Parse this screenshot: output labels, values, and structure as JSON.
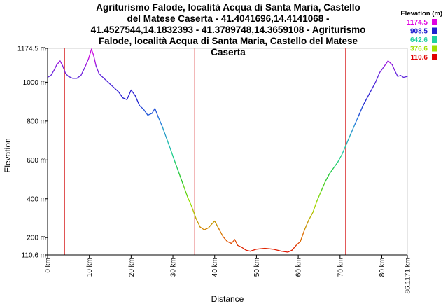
{
  "chart_data": {
    "type": "line",
    "title_lines": [
      "Agriturismo Falode, località Acqua di Santa Maria, Castello",
      "del Matese Caserta - 41.4041696,14.4141068 -",
      "41.4527544,14.1832393 - 41.3789748,14.3659108 - Agriturismo",
      "Falode, località Acqua di Santa Maria, Castello del Matese",
      "Caserta"
    ],
    "xlabel": "Distance",
    "ylabel": "Elevation",
    "xlim": [
      0,
      86.1171
    ],
    "ylim": [
      110.6,
      1174.5
    ],
    "x_ticks": [
      "0 km",
      "10 km",
      "20 km",
      "30 km",
      "40 km",
      "50 km",
      "60 km",
      "70 km",
      "80 km",
      "86.1171 km"
    ],
    "x_tick_values": [
      0,
      10,
      20,
      30,
      40,
      50,
      60,
      70,
      80,
      86.1171
    ],
    "y_ticks": [
      "110.6 m",
      "200 m",
      "400 m",
      "600 m",
      "800 m",
      "1000 m",
      "1174.5 m"
    ],
    "y_tick_values": [
      110.6,
      200,
      400,
      600,
      800,
      1000,
      1174.5
    ],
    "waypoints_km": [
      4.1,
      35.2,
      71.3
    ],
    "legend": {
      "title": "Elevation (m)",
      "entries": [
        {
          "label": "1174.5",
          "color": "#e000e0"
        },
        {
          "label": "908.5",
          "color": "#2020d0"
        },
        {
          "label": "642.6",
          "color": "#20d0a0"
        },
        {
          "label": "376.6",
          "color": "#a0e000"
        },
        {
          "label": "110.6",
          "color": "#e00000"
        }
      ]
    },
    "series": [
      {
        "x": [
          0,
          0.8,
          1.5,
          2.2,
          3.0,
          3.6,
          4.3,
          5.0,
          6.0,
          7.0,
          8.0,
          9.0,
          9.8,
          10.5,
          11.0,
          11.6,
          12.3,
          13.0,
          14.0,
          15.0,
          16.0,
          17.0,
          18.0,
          19.0,
          20.0,
          21.0,
          22.0,
          23.0,
          24.0,
          25.0,
          25.7,
          26.5,
          27.5,
          28.5,
          29.5,
          30.5,
          31.5,
          32.5,
          33.5,
          34.5,
          35.5,
          36.5,
          37.5,
          38.5,
          39.3,
          40.0,
          41.0,
          42.0,
          43.0,
          44.0,
          44.8,
          45.5,
          46.5,
          47.5,
          48.5,
          50.0,
          52.0,
          54.0,
          56.0,
          57.5,
          58.5,
          59.5,
          60.5,
          61.5,
          62.5,
          63.5,
          64.5,
          65.5,
          66.5,
          67.5,
          68.5,
          69.5,
          70.5,
          71.5,
          72.5,
          73.5,
          74.5,
          75.5,
          76.5,
          77.5,
          78.5,
          79.5,
          80.5,
          81.5,
          82.5,
          83.2,
          83.8,
          84.5,
          85.2,
          86.1171
        ],
        "y": [
          1025,
          1035,
          1060,
          1090,
          1110,
          1085,
          1045,
          1030,
          1020,
          1020,
          1035,
          1080,
          1120,
          1170,
          1140,
          1085,
          1045,
          1030,
          1010,
          990,
          970,
          950,
          920,
          910,
          960,
          930,
          880,
          860,
          830,
          840,
          865,
          820,
          770,
          710,
          650,
          590,
          530,
          470,
          410,
          360,
          300,
          255,
          240,
          250,
          270,
          285,
          245,
          205,
          180,
          170,
          190,
          160,
          150,
          135,
          130,
          140,
          145,
          140,
          130,
          125,
          135,
          160,
          180,
          240,
          290,
          330,
          390,
          440,
          490,
          530,
          560,
          590,
          630,
          680,
          730,
          780,
          830,
          880,
          920,
          960,
          1000,
          1050,
          1080,
          1110,
          1090,
          1055,
          1030,
          1035,
          1025,
          1030
        ]
      }
    ]
  }
}
